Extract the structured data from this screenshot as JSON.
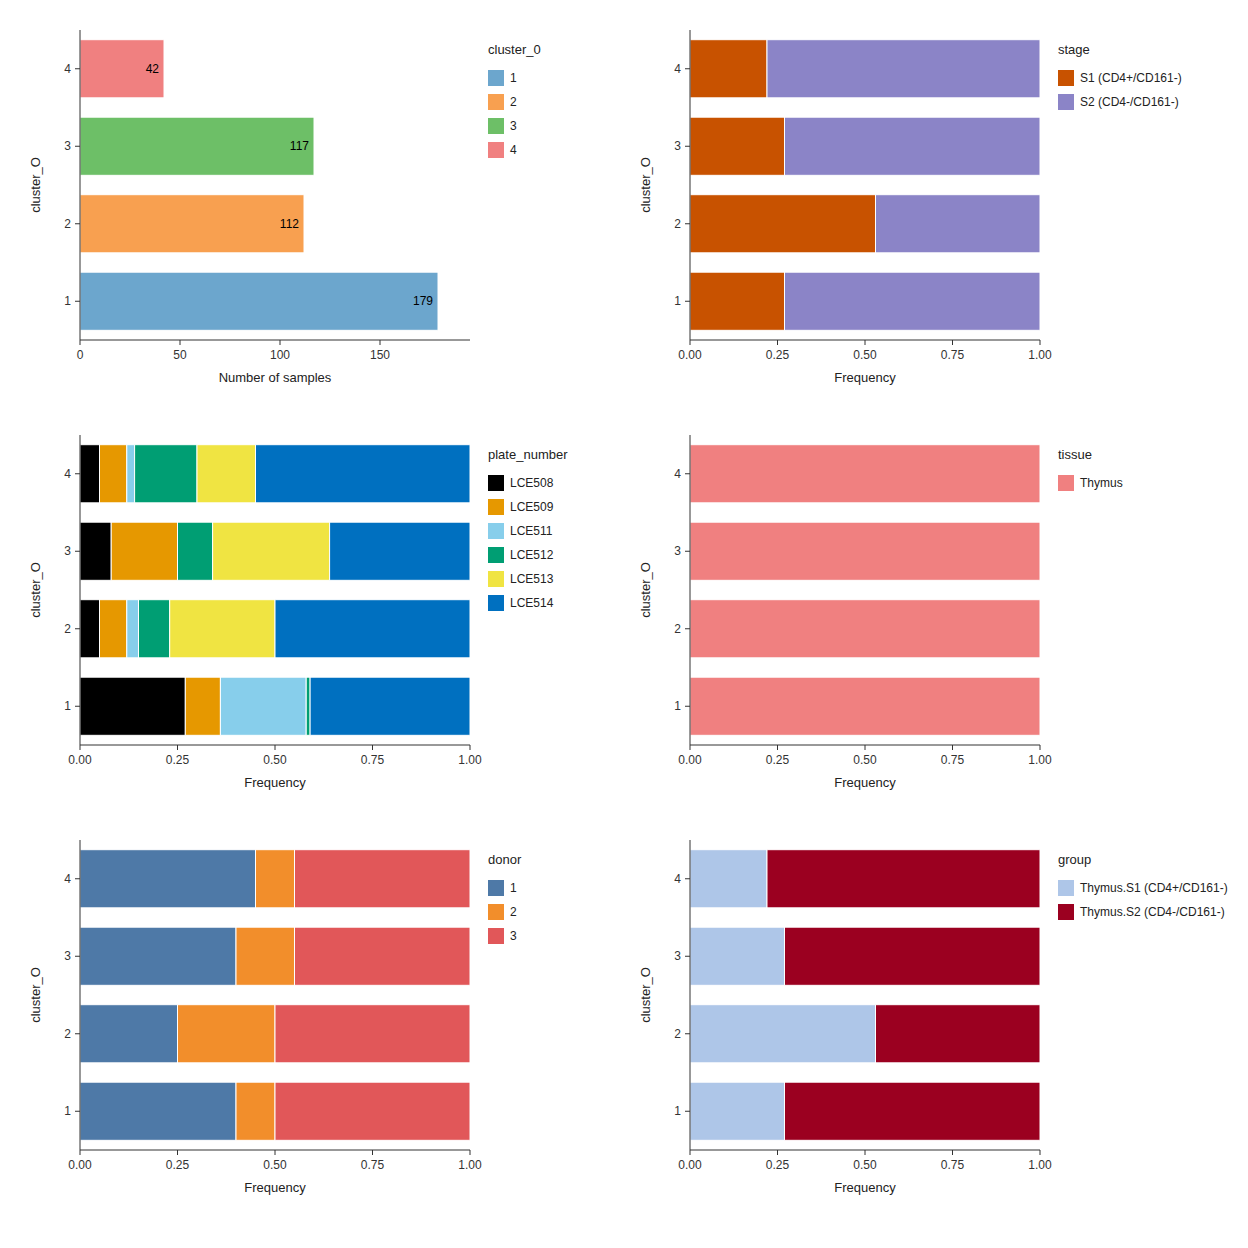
{
  "chart_data": [
    {
      "type": "bar",
      "orientation": "horizontal",
      "x_label": "Number of samples",
      "y_label": "cluster_O",
      "categories": [
        "1",
        "2",
        "3",
        "4"
      ],
      "values": [
        179,
        112,
        117,
        42
      ],
      "colors": [
        "#6CA6CD",
        "#F8A050",
        "#6DBF67",
        "#F08080"
      ],
      "data_labels": true,
      "xlim": [
        0,
        195
      ],
      "xticks": [
        0,
        50,
        100,
        150
      ],
      "grid": false,
      "legend": "right",
      "legend_title": "cluster_0"
    },
    {
      "type": "bar",
      "orientation": "horizontal",
      "stacked": true,
      "x_label": "Frequency",
      "y_label": "cluster_O",
      "categories": [
        "1",
        "2",
        "3",
        "4"
      ],
      "series": [
        {
          "name": "S1 (CD4+/CD161-)",
          "color": "#C85200",
          "values": [
            0.27,
            0.53,
            0.27,
            0.22
          ]
        },
        {
          "name": "S2 (CD4-/CD161-)",
          "color": "#8B84C7",
          "values": [
            0.73,
            0.47,
            0.73,
            0.78
          ]
        }
      ],
      "xlim": [
        0,
        1.0
      ],
      "xticks": [
        {
          "value": 0,
          "label": "0.00"
        },
        {
          "value": 0.25,
          "label": "0.25"
        },
        {
          "value": 0.5,
          "label": "0.50"
        },
        {
          "value": 0.75,
          "label": "0.75"
        },
        {
          "value": 1.0,
          "label": "1.00"
        }
      ],
      "grid": false,
      "legend": "right",
      "legend_title": "stage"
    },
    {
      "type": "bar",
      "orientation": "horizontal",
      "stacked": true,
      "x_label": "Frequency",
      "y_label": "cluster_O",
      "categories": [
        "1",
        "2",
        "3",
        "4"
      ],
      "series": [
        {
          "name": "LCE508",
          "color": "#000000",
          "values": [
            0.27,
            0.05,
            0.08,
            0.05
          ]
        },
        {
          "name": "LCE509",
          "color": "#E69800",
          "values": [
            0.09,
            0.07,
            0.17,
            0.07
          ]
        },
        {
          "name": "LCE511",
          "color": "#87CEEB",
          "values": [
            0.22,
            0.03,
            0.0,
            0.02
          ]
        },
        {
          "name": "LCE512",
          "color": "#009E73",
          "values": [
            0.01,
            0.08,
            0.09,
            0.16
          ]
        },
        {
          "name": "LCE513",
          "color": "#F0E442",
          "values": [
            0.0,
            0.27,
            0.3,
            0.15
          ]
        },
        {
          "name": "LCE514",
          "color": "#0070C0",
          "values": [
            0.41,
            0.5,
            0.36,
            0.55
          ]
        }
      ],
      "xlim": [
        0,
        1.0
      ],
      "xticks": [
        {
          "value": 0,
          "label": "0.00"
        },
        {
          "value": 0.25,
          "label": "0.25"
        },
        {
          "value": 0.5,
          "label": "0.50"
        },
        {
          "value": 0.75,
          "label": "0.75"
        },
        {
          "value": 1.0,
          "label": "1.00"
        }
      ],
      "grid": false,
      "legend": "right",
      "legend_title": "plate_number"
    },
    {
      "type": "bar",
      "orientation": "horizontal",
      "stacked": true,
      "x_label": "Frequency",
      "y_label": "cluster_O",
      "categories": [
        "1",
        "2",
        "3",
        "4"
      ],
      "series": [
        {
          "name": "Thymus",
          "color": "#F08080",
          "values": [
            1.0,
            1.0,
            1.0,
            1.0
          ]
        }
      ],
      "xlim": [
        0,
        1.0
      ],
      "xticks": [
        {
          "value": 0,
          "label": "0.00"
        },
        {
          "value": 0.25,
          "label": "0.25"
        },
        {
          "value": 0.5,
          "label": "0.50"
        },
        {
          "value": 0.75,
          "label": "0.75"
        },
        {
          "value": 1.0,
          "label": "1.00"
        }
      ],
      "grid": false,
      "legend": "right",
      "legend_title": "tissue"
    },
    {
      "type": "bar",
      "orientation": "horizontal",
      "stacked": true,
      "x_label": "Frequency",
      "y_label": "cluster_O",
      "categories": [
        "1",
        "2",
        "3",
        "4"
      ],
      "series": [
        {
          "name": "1",
          "color": "#4E79A7",
          "values": [
            0.4,
            0.25,
            0.4,
            0.45
          ]
        },
        {
          "name": "2",
          "color": "#F28E2B",
          "values": [
            0.1,
            0.25,
            0.15,
            0.1
          ]
        },
        {
          "name": "3",
          "color": "#E15759",
          "values": [
            0.5,
            0.5,
            0.45,
            0.45
          ]
        }
      ],
      "xlim": [
        0,
        1.0
      ],
      "xticks": [
        {
          "value": 0,
          "label": "0.00"
        },
        {
          "value": 0.25,
          "label": "0.25"
        },
        {
          "value": 0.5,
          "label": "0.50"
        },
        {
          "value": 0.75,
          "label": "0.75"
        },
        {
          "value": 1.0,
          "label": "1.00"
        }
      ],
      "grid": false,
      "legend": "right",
      "legend_title": "donor"
    },
    {
      "type": "bar",
      "orientation": "horizontal",
      "stacked": true,
      "x_label": "Frequency",
      "y_label": "cluster_O",
      "categories": [
        "1",
        "2",
        "3",
        "4"
      ],
      "series": [
        {
          "name": "Thymus.S1 (CD4+/CD161-)",
          "color": "#AEC6E8",
          "values": [
            0.27,
            0.53,
            0.27,
            0.22
          ]
        },
        {
          "name": "Thymus.S2 (CD4-/CD161-)",
          "color": "#9B0020",
          "values": [
            0.73,
            0.47,
            0.73,
            0.78
          ]
        }
      ],
      "xlim": [
        0,
        1.0
      ],
      "xticks": [
        {
          "value": 0,
          "label": "0.00"
        },
        {
          "value": 0.25,
          "label": "0.25"
        },
        {
          "value": 0.5,
          "label": "0.50"
        },
        {
          "value": 0.75,
          "label": "0.75"
        },
        {
          "value": 1.0,
          "label": "1.00"
        }
      ],
      "grid": false,
      "legend": "right",
      "legend_title": "group"
    }
  ]
}
